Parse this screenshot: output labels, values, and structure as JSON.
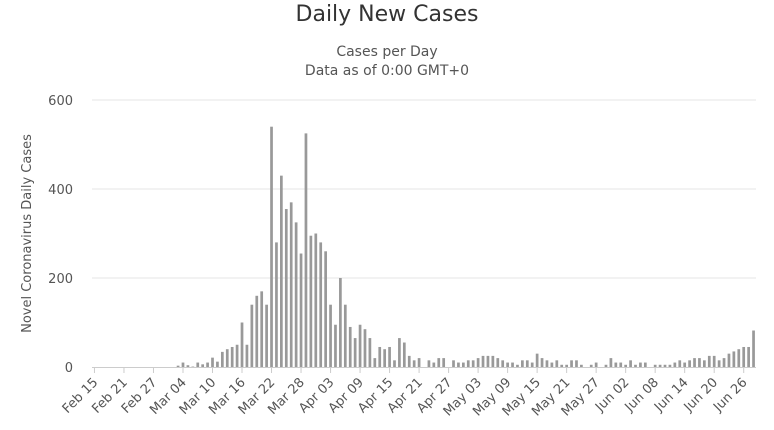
{
  "chart_data": {
    "type": "bar",
    "title": "Daily New Cases",
    "subtitle_lines": [
      "Cases per Day",
      "Data as of 0:00 GMT+0"
    ],
    "xlabel": "",
    "ylabel": "Novel Coronavirus Daily Cases",
    "ylim": [
      0,
      600
    ],
    "yticks": [
      0,
      200,
      400,
      600
    ],
    "grid": true,
    "legend": "none",
    "bar_color": "#999999",
    "x_tick_labels": [
      "Feb 15",
      "Feb 21",
      "Feb 27",
      "Mar 04",
      "Mar 10",
      "Mar 16",
      "Mar 22",
      "Mar 28",
      "Apr 03",
      "Apr 09",
      "Apr 15",
      "Apr 21",
      "Apr 27",
      "May 03",
      "May 09",
      "May 15",
      "May 21",
      "May 27",
      "Jun 02",
      "Jun 08",
      "Jun 14",
      "Jun 20",
      "Jun 26"
    ],
    "tick_every": 6,
    "start_date": "Feb 15",
    "values": [
      0,
      0,
      0,
      0,
      0,
      0,
      0,
      0,
      0,
      0,
      0,
      0,
      0,
      0,
      0,
      0,
      0,
      3,
      10,
      4,
      1,
      10,
      6,
      10,
      21,
      12,
      34,
      40,
      45,
      50,
      100,
      50,
      140,
      160,
      170,
      140,
      540,
      280,
      430,
      355,
      370,
      325,
      255,
      525,
      295,
      300,
      280,
      260,
      140,
      95,
      200,
      140,
      90,
      65,
      95,
      85,
      65,
      20,
      45,
      40,
      45,
      15,
      65,
      55,
      25,
      15,
      20,
      0,
      15,
      10,
      20,
      20,
      0,
      15,
      10,
      10,
      15,
      15,
      20,
      25,
      25,
      25,
      20,
      15,
      10,
      10,
      5,
      15,
      15,
      10,
      30,
      20,
      15,
      10,
      15,
      5,
      5,
      15,
      15,
      5,
      0,
      5,
      10,
      0,
      5,
      20,
      10,
      10,
      5,
      15,
      5,
      10,
      10,
      0,
      5,
      5,
      5,
      5,
      10,
      15,
      10,
      15,
      20,
      20,
      15,
      25,
      25,
      15,
      20,
      30,
      35,
      40,
      45,
      45,
      82
    ]
  }
}
